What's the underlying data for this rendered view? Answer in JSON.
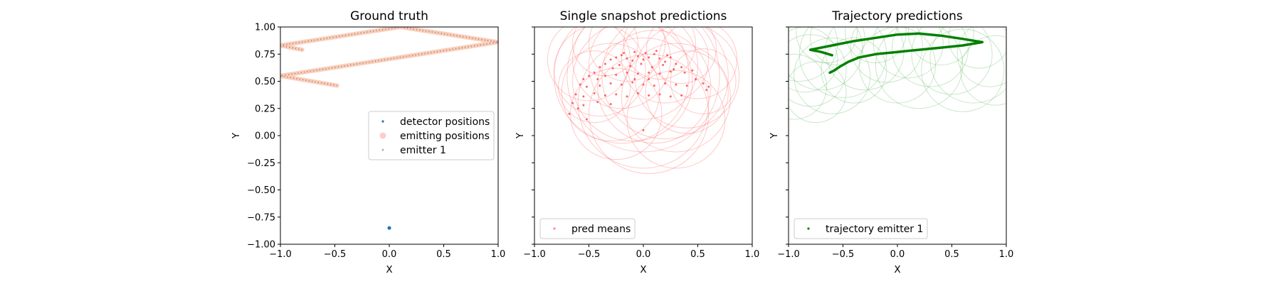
{
  "chart_data": [
    {
      "type": "scatter",
      "title": "Ground truth",
      "xlabel": "X",
      "ylabel": "Y",
      "xlim": [
        -1.0,
        1.0
      ],
      "ylim": [
        -1.0,
        1.0
      ],
      "xticks": [
        "−1.0",
        "−0.5",
        "0.0",
        "0.5",
        "1.0"
      ],
      "yticks": [
        "−1.00",
        "−0.75",
        "−0.50",
        "−0.25",
        "0.00",
        "0.25",
        "0.50",
        "0.75",
        "1.00"
      ],
      "show_ytick_labels": true,
      "grid": false,
      "legend": {
        "placement": "center-right",
        "entries": [
          {
            "label": "detector positions",
            "color": "#1f77b4"
          },
          {
            "label": "emitting positions",
            "color": "#ff9999"
          },
          {
            "label": "emitter 1",
            "color": "#8c564b"
          }
        ]
      },
      "detector": {
        "x": 0.0,
        "y": -0.85,
        "color": "#1f77b4"
      },
      "emitter_path": {
        "color": "#f4a582",
        "dot_color": "#8c564b",
        "segments": [
          [
            [
              -0.8,
              0.79
            ],
            [
              -1.0,
              0.83
            ],
            [
              0.1,
              1.0
            ],
            [
              1.0,
              0.86
            ],
            [
              -1.0,
              0.55
            ],
            [
              -0.48,
              0.46
            ]
          ]
        ]
      }
    },
    {
      "type": "scatter",
      "title": "Single snapshot predictions",
      "xlabel": "X",
      "ylabel": "Y",
      "xlim": [
        -1.0,
        1.0
      ],
      "ylim": [
        -1.0,
        1.0
      ],
      "xticks": [
        "−1.0",
        "−0.5",
        "0.0",
        "0.5",
        "1.0"
      ],
      "yticks": [
        "",
        "",
        "",
        "",
        "",
        "",
        "",
        "",
        ""
      ],
      "show_ytick_labels": false,
      "grid": false,
      "legend": {
        "placement": "lower-left",
        "entries": [
          {
            "label": "pred means",
            "color": "#ff6666"
          }
        ]
      },
      "points_color": "#ff3333",
      "circle_color": "#ff6666",
      "points": [
        [
          -0.35,
          0.66
        ],
        [
          -0.3,
          0.7
        ],
        [
          -0.25,
          0.72
        ],
        [
          -0.2,
          0.74
        ],
        [
          -0.15,
          0.71
        ],
        [
          -0.1,
          0.69
        ],
        [
          -0.05,
          0.73
        ],
        [
          0.0,
          0.7
        ],
        [
          0.05,
          0.72
        ],
        [
          0.1,
          0.75
        ],
        [
          0.15,
          0.71
        ],
        [
          0.2,
          0.68
        ],
        [
          0.25,
          0.72
        ],
        [
          0.3,
          0.66
        ],
        [
          -0.28,
          0.62
        ],
        [
          -0.22,
          0.65
        ],
        [
          -0.12,
          0.64
        ],
        [
          -0.02,
          0.66
        ],
        [
          0.08,
          0.63
        ],
        [
          0.18,
          0.65
        ],
        [
          0.28,
          0.61
        ],
        [
          -0.18,
          0.76
        ],
        [
          -0.08,
          0.77
        ],
        [
          0.02,
          0.76
        ],
        [
          0.12,
          0.78
        ],
        [
          0.22,
          0.74
        ],
        [
          -0.4,
          0.63
        ],
        [
          0.35,
          0.63
        ],
        [
          -0.45,
          0.58
        ],
        [
          -0.5,
          0.55
        ],
        [
          -0.55,
          0.52
        ],
        [
          -0.42,
          0.52
        ],
        [
          -0.35,
          0.55
        ],
        [
          -0.25,
          0.56
        ],
        [
          -0.15,
          0.58
        ],
        [
          -0.05,
          0.57
        ],
        [
          0.05,
          0.58
        ],
        [
          0.15,
          0.57
        ],
        [
          0.25,
          0.59
        ],
        [
          0.38,
          0.58
        ],
        [
          0.45,
          0.6
        ],
        [
          0.48,
          0.52
        ],
        [
          -0.58,
          0.47
        ],
        [
          -0.52,
          0.45
        ],
        [
          -0.4,
          0.46
        ],
        [
          -0.3,
          0.48
        ],
        [
          -0.2,
          0.47
        ],
        [
          -0.1,
          0.49
        ],
        [
          0.0,
          0.47
        ],
        [
          0.1,
          0.46
        ],
        [
          0.2,
          0.48
        ],
        [
          0.3,
          0.47
        ],
        [
          0.4,
          0.46
        ],
        [
          0.55,
          0.48
        ],
        [
          0.58,
          0.42
        ],
        [
          0.6,
          0.45
        ],
        [
          -0.62,
          0.38
        ],
        [
          -0.55,
          0.36
        ],
        [
          -0.45,
          0.39
        ],
        [
          -0.35,
          0.37
        ],
        [
          -0.25,
          0.38
        ],
        [
          -0.15,
          0.36
        ],
        [
          -0.05,
          0.39
        ],
        [
          0.05,
          0.37
        ],
        [
          0.15,
          0.38
        ],
        [
          0.25,
          0.36
        ],
        [
          0.35,
          0.37
        ],
        [
          -0.65,
          0.3
        ],
        [
          -0.55,
          0.28
        ],
        [
          -0.42,
          0.31
        ],
        [
          -0.3,
          0.29
        ],
        [
          -0.6,
          0.25
        ],
        [
          -0.68,
          0.2
        ],
        [
          -0.52,
          0.15
        ],
        [
          0.0,
          0.05
        ],
        [
          0.05,
          0.52
        ],
        [
          -0.08,
          0.52
        ]
      ],
      "circles": [
        [
          -0.2,
          0.7,
          0.45
        ],
        [
          0.0,
          0.65,
          0.5
        ],
        [
          0.2,
          0.7,
          0.4
        ],
        [
          -0.4,
          0.6,
          0.42
        ],
        [
          0.4,
          0.55,
          0.48
        ],
        [
          -0.1,
          0.5,
          0.55
        ],
        [
          0.1,
          0.45,
          0.52
        ],
        [
          -0.3,
          0.4,
          0.45
        ],
        [
          0.3,
          0.35,
          0.5
        ],
        [
          0.0,
          0.3,
          0.6
        ],
        [
          -0.5,
          0.7,
          0.38
        ],
        [
          0.5,
          0.7,
          0.36
        ],
        [
          -0.15,
          0.85,
          0.35
        ],
        [
          0.15,
          0.85,
          0.33
        ],
        [
          -0.35,
          0.85,
          0.3
        ],
        [
          0.35,
          0.8,
          0.32
        ],
        [
          0.05,
          0.2,
          0.55
        ],
        [
          0.3,
          0.15,
          0.45
        ],
        [
          -0.25,
          0.2,
          0.42
        ],
        [
          0.0,
          0.55,
          0.7
        ],
        [
          0.4,
          0.4,
          0.38
        ],
        [
          -0.45,
          0.45,
          0.33
        ],
        [
          0.2,
          0.55,
          0.58
        ],
        [
          -0.2,
          0.55,
          0.62
        ],
        [
          0.55,
          0.5,
          0.3
        ]
      ]
    },
    {
      "type": "scatter",
      "title": "Trajectory predictions",
      "xlabel": "X",
      "ylabel": "Y",
      "xlim": [
        -1.0,
        1.0
      ],
      "ylim": [
        -1.0,
        1.0
      ],
      "xticks": [
        "−1.0",
        "−0.5",
        "0.0",
        "0.5",
        "1.0"
      ],
      "yticks": [
        "",
        "",
        "",
        "",
        "",
        "",
        "",
        "",
        ""
      ],
      "show_ytick_labels": false,
      "grid": false,
      "legend": {
        "placement": "lower-left",
        "entries": [
          {
            "label": "trajectory emitter 1",
            "color": "#008000"
          }
        ]
      },
      "line_color": "#008000",
      "circle_color": "#66bb66",
      "trajectory": [
        [
          -0.6,
          0.74
        ],
        [
          -0.7,
          0.77
        ],
        [
          -0.8,
          0.79
        ],
        [
          -0.6,
          0.83
        ],
        [
          -0.4,
          0.87
        ],
        [
          -0.2,
          0.9
        ],
        [
          0.0,
          0.93
        ],
        [
          0.2,
          0.94
        ],
        [
          0.4,
          0.92
        ],
        [
          0.6,
          0.89
        ],
        [
          0.78,
          0.86
        ],
        [
          0.6,
          0.83
        ],
        [
          0.4,
          0.81
        ],
        [
          0.2,
          0.79
        ],
        [
          0.0,
          0.77
        ],
        [
          -0.2,
          0.75
        ],
        [
          -0.35,
          0.72
        ],
        [
          -0.45,
          0.68
        ],
        [
          -0.52,
          0.64
        ],
        [
          -0.58,
          0.6
        ],
        [
          -0.62,
          0.58
        ]
      ],
      "circles": [
        [
          -0.9,
          0.85,
          0.35
        ],
        [
          -0.7,
          0.8,
          0.38
        ],
        [
          -0.5,
          0.75,
          0.4
        ],
        [
          -0.3,
          0.78,
          0.36
        ],
        [
          -0.1,
          0.82,
          0.33
        ],
        [
          0.1,
          0.85,
          0.32
        ],
        [
          0.3,
          0.8,
          0.35
        ],
        [
          0.5,
          0.75,
          0.37
        ],
        [
          0.7,
          0.7,
          0.4
        ],
        [
          0.85,
          0.75,
          0.3
        ],
        [
          -0.8,
          0.6,
          0.33
        ],
        [
          -0.6,
          0.55,
          0.35
        ],
        [
          -0.4,
          0.6,
          0.3
        ],
        [
          0.2,
          0.65,
          0.4
        ],
        [
          0.6,
          0.6,
          0.38
        ],
        [
          -0.95,
          0.45,
          0.3
        ],
        [
          -0.75,
          0.4,
          0.28
        ],
        [
          0.4,
          0.95,
          0.3
        ],
        [
          -0.2,
          0.95,
          0.28
        ],
        [
          0.9,
          0.6,
          0.32
        ],
        [
          -0.55,
          0.9,
          0.25
        ],
        [
          0.0,
          0.65,
          0.35
        ],
        [
          0.75,
          0.9,
          0.28
        ],
        [
          -0.85,
          0.7,
          0.3
        ],
        [
          -0.65,
          0.95,
          0.28
        ]
      ]
    }
  ]
}
